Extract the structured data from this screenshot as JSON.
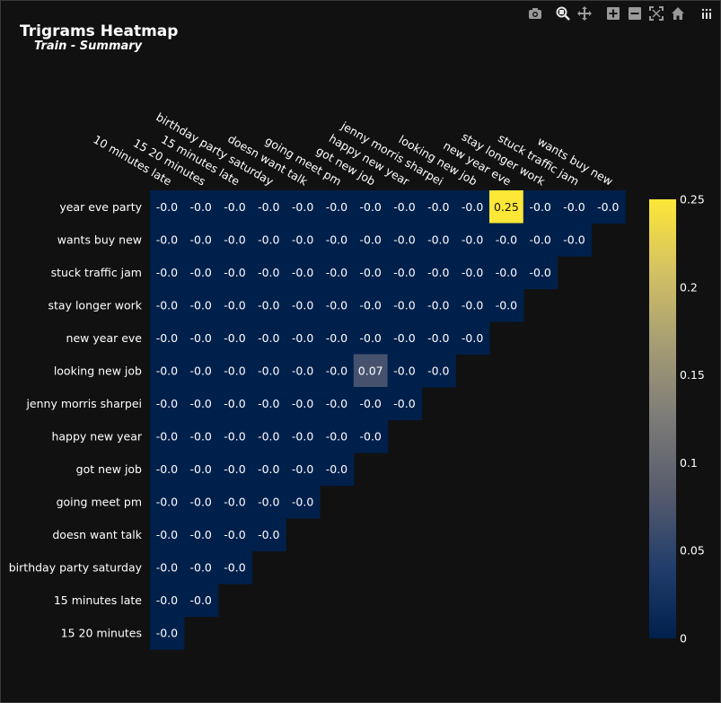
{
  "title": "Trigrams Heatmap",
  "subtitle": "Train - Summary",
  "toolbar": [
    {
      "name": "camera-icon"
    },
    {
      "name": "zoom-icon"
    },
    {
      "name": "pan-icon"
    },
    {
      "name": "zoom-in-icon"
    },
    {
      "name": "zoom-out-icon"
    },
    {
      "name": "autoscale-icon"
    },
    {
      "name": "reset-home-icon"
    },
    {
      "name": "plotly-logo-icon"
    }
  ],
  "chart_data": {
    "type": "heatmap",
    "x_categories": [
      "10 minutes late",
      "15 20 minutes",
      "15 minutes late",
      "birthday party saturday",
      "doesn want talk",
      "going meet pm",
      "got new job",
      "happy new year",
      "jenny morris sharpei",
      "looking new job",
      "new year eve",
      "stay longer work",
      "stuck traffic jam",
      "wants buy new"
    ],
    "y_categories": [
      "year eve party",
      "wants buy new",
      "stuck traffic jam",
      "stay longer work",
      "new year eve",
      "looking new job",
      "jenny morris sharpei",
      "happy new year",
      "got new job",
      "going meet pm",
      "doesn want talk",
      "birthday party saturday",
      "15 minutes late",
      "15 20 minutes"
    ],
    "z": [
      [
        -0.0,
        -0.0,
        -0.0,
        -0.0,
        -0.0,
        -0.0,
        -0.0,
        -0.0,
        -0.0,
        -0.0,
        0.25,
        -0.0,
        -0.0,
        -0.0
      ],
      [
        -0.0,
        -0.0,
        -0.0,
        -0.0,
        -0.0,
        -0.0,
        -0.0,
        -0.0,
        -0.0,
        -0.0,
        -0.0,
        -0.0,
        -0.0
      ],
      [
        -0.0,
        -0.0,
        -0.0,
        -0.0,
        -0.0,
        -0.0,
        -0.0,
        -0.0,
        -0.0,
        -0.0,
        -0.0,
        -0.0
      ],
      [
        -0.0,
        -0.0,
        -0.0,
        -0.0,
        -0.0,
        -0.0,
        -0.0,
        -0.0,
        -0.0,
        -0.0,
        -0.0
      ],
      [
        -0.0,
        -0.0,
        -0.0,
        -0.0,
        -0.0,
        -0.0,
        -0.0,
        -0.0,
        -0.0,
        -0.0
      ],
      [
        -0.0,
        -0.0,
        -0.0,
        -0.0,
        -0.0,
        -0.0,
        0.07,
        -0.0,
        -0.0
      ],
      [
        -0.0,
        -0.0,
        -0.0,
        -0.0,
        -0.0,
        -0.0,
        -0.0,
        -0.0
      ],
      [
        -0.0,
        -0.0,
        -0.0,
        -0.0,
        -0.0,
        -0.0,
        -0.0
      ],
      [
        -0.0,
        -0.0,
        -0.0,
        -0.0,
        -0.0,
        -0.0
      ],
      [
        -0.0,
        -0.0,
        -0.0,
        -0.0,
        -0.0
      ],
      [
        -0.0,
        -0.0,
        -0.0,
        -0.0
      ],
      [
        -0.0,
        -0.0,
        -0.0
      ],
      [
        -0.0,
        -0.0
      ],
      [
        -0.0
      ]
    ],
    "colorbar": {
      "min": 0,
      "max": 0.25,
      "ticks": [
        0,
        0.05,
        0.1,
        0.15,
        0.2,
        0.25
      ],
      "tick_labels": [
        "0",
        "0.05",
        "0.1",
        "0.15",
        "0.2",
        "0.25"
      ],
      "colors": [
        "#00204c",
        "#233e6c",
        "#575c6d",
        "#7c7b78",
        "#a59c74",
        "#d3c164",
        "#fde737"
      ]
    },
    "grid": false
  }
}
